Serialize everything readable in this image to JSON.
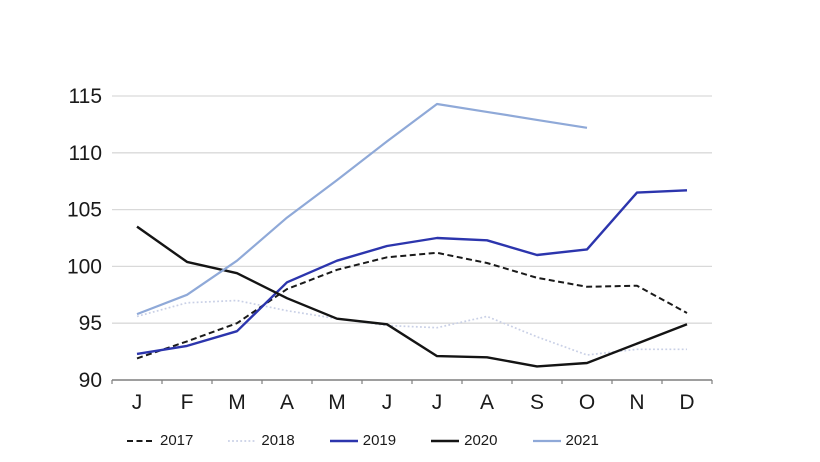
{
  "chart_data": {
    "type": "line",
    "categories": [
      "J",
      "F",
      "M",
      "A",
      "M",
      "J",
      "J",
      "A",
      "S",
      "O",
      "N",
      "D"
    ],
    "ylim": [
      90,
      115
    ],
    "yticks": [
      90,
      95,
      100,
      105,
      110,
      115
    ],
    "grid": true,
    "legend_position": "bottom",
    "series": [
      {
        "name": "2017",
        "style": "dashed",
        "color": "#1a1a1a",
        "width": 2,
        "values": [
          91.9,
          93.4,
          95.0,
          98.0,
          99.7,
          100.8,
          101.2,
          100.3,
          99.0,
          98.2,
          98.3,
          95.9
        ]
      },
      {
        "name": "2018",
        "style": "dotted",
        "color": "#c9d0e6",
        "width": 1.7,
        "values": [
          95.6,
          96.8,
          97.0,
          96.1,
          95.4,
          94.8,
          94.6,
          95.6,
          93.8,
          92.2,
          92.7,
          92.7
        ]
      },
      {
        "name": "2019",
        "style": "solid",
        "color": "#2c35ad",
        "width": 2.4,
        "values": [
          92.3,
          93.0,
          94.3,
          98.6,
          100.5,
          101.8,
          102.5,
          102.3,
          101.0,
          101.5,
          106.5,
          106.7
        ]
      },
      {
        "name": "2020",
        "style": "solid",
        "color": "#141414",
        "width": 2.4,
        "values": [
          103.5,
          100.4,
          99.4,
          97.2,
          95.4,
          94.9,
          92.1,
          92.0,
          91.2,
          91.5,
          93.2,
          94.9
        ]
      },
      {
        "name": "2021",
        "style": "solid",
        "color": "#8fa9d8",
        "width": 2.2,
        "values": [
          95.8,
          97.5,
          100.5,
          104.3,
          107.6,
          111.0,
          114.3,
          113.6,
          112.9,
          112.2,
          null,
          null
        ]
      }
    ],
    "colors": {
      "gridline": "#d9d9d9",
      "axis": "#7f7f7f",
      "tick": "#7f7f7f",
      "label_text": "#1a1a1a"
    }
  }
}
